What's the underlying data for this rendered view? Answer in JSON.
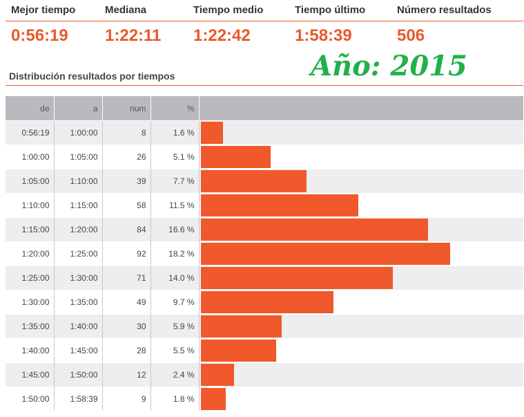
{
  "stats": [
    {
      "label": "Mejor tiempo",
      "value": "0:56:19"
    },
    {
      "label": "Mediana",
      "value": "1:22:11"
    },
    {
      "label": "Tiempo medio",
      "value": "1:22:42"
    },
    {
      "label": "Tiempo último",
      "value": "1:58:39"
    },
    {
      "label": "Número resultados",
      "value": "506"
    }
  ],
  "section_title": "Distribución resultados por tiempos",
  "year_label": "Año: 2015",
  "colors": {
    "accent": "#e8592b",
    "bar": "#f0592b",
    "header_bg": "#b9b9be",
    "year": "#22b04a"
  },
  "chart_data": {
    "type": "table",
    "columns": [
      "de",
      "a",
      "num",
      "%"
    ],
    "rows": [
      {
        "de": "0:56:19",
        "a": "1:00:00",
        "num": 8,
        "pct": "1.6 %",
        "value": 1.6
      },
      {
        "de": "1:00:00",
        "a": "1:05:00",
        "num": 26,
        "pct": "5.1 %",
        "value": 5.1
      },
      {
        "de": "1:05:00",
        "a": "1:10:00",
        "num": 39,
        "pct": "7.7 %",
        "value": 7.7
      },
      {
        "de": "1:10:00",
        "a": "1:15:00",
        "num": 58,
        "pct": "11.5 %",
        "value": 11.5
      },
      {
        "de": "1:15:00",
        "a": "1:20:00",
        "num": 84,
        "pct": "16.6 %",
        "value": 16.6
      },
      {
        "de": "1:20:00",
        "a": "1:25:00",
        "num": 92,
        "pct": "18.2 %",
        "value": 18.2
      },
      {
        "de": "1:25:00",
        "a": "1:30:00",
        "num": 71,
        "pct": "14.0 %",
        "value": 14.0
      },
      {
        "de": "1:30:00",
        "a": "1:35:00",
        "num": 49,
        "pct": "9.7 %",
        "value": 9.7
      },
      {
        "de": "1:35:00",
        "a": "1:40:00",
        "num": 30,
        "pct": "5.9 %",
        "value": 5.9
      },
      {
        "de": "1:40:00",
        "a": "1:45:00",
        "num": 28,
        "pct": "5.5 %",
        "value": 5.5
      },
      {
        "de": "1:45:00",
        "a": "1:50:00",
        "num": 12,
        "pct": "2.4 %",
        "value": 2.4
      },
      {
        "de": "1:50:00",
        "a": "1:58:39",
        "num": 9,
        "pct": "1.8 %",
        "value": 1.8
      }
    ]
  }
}
